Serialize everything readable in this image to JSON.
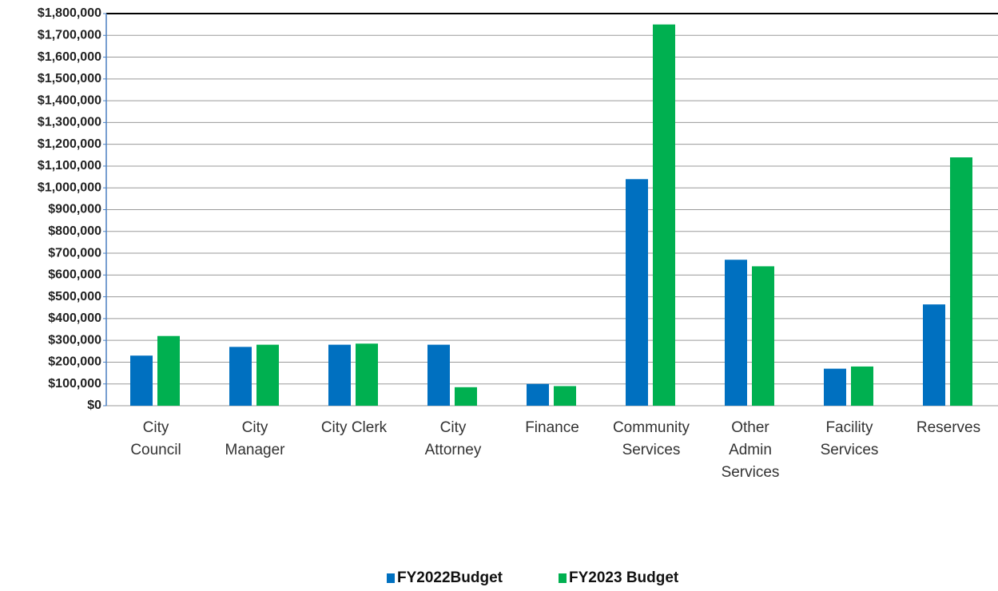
{
  "chart_data": {
    "type": "bar",
    "categories": [
      "City\nCouncil",
      "City\nManager",
      "City Clerk",
      "City\nAttorney",
      "Finance",
      "Community\nServices",
      "Other\nAdmin\nServices",
      "Facility\nServices",
      "Reserves"
    ],
    "series": [
      {
        "name": "FY2022Budget",
        "color": "#0070c0",
        "values": [
          230000,
          270000,
          280000,
          280000,
          100000,
          1040000,
          670000,
          170000,
          465000
        ]
      },
      {
        "name": "FY2023 Budget",
        "color": "#00b050",
        "values": [
          320000,
          280000,
          285000,
          85000,
          90000,
          1750000,
          640000,
          180000,
          1140000
        ]
      }
    ],
    "ylim": [
      0,
      1800000
    ],
    "yticks": [
      {
        "value": 0,
        "label": "$0"
      },
      {
        "value": 100000,
        "label": "$100,000"
      },
      {
        "value": 200000,
        "label": "$200,000"
      },
      {
        "value": 300000,
        "label": "$300,000"
      },
      {
        "value": 400000,
        "label": "$400,000"
      },
      {
        "value": 500000,
        "label": "$500,000"
      },
      {
        "value": 600000,
        "label": "$600,000"
      },
      {
        "value": 700000,
        "label": "$700,000"
      },
      {
        "value": 800000,
        "label": "$800,000"
      },
      {
        "value": 900000,
        "label": "$900,000"
      },
      {
        "value": 1000000,
        "label": "$1,000,000"
      },
      {
        "value": 1100000,
        "label": "$1,100,000"
      },
      {
        "value": 1200000,
        "label": "$1,200,000"
      },
      {
        "value": 1300000,
        "label": "$1,300,000"
      },
      {
        "value": 1400000,
        "label": "$1,400,000"
      },
      {
        "value": 1500000,
        "label": "$1,500,000"
      },
      {
        "value": 1600000,
        "label": "$1,600,000"
      },
      {
        "value": 1700000,
        "label": "$1,700,000"
      },
      {
        "value": 1800000,
        "label": "$1,800,000"
      }
    ],
    "grid": true,
    "legend": "bottom"
  }
}
